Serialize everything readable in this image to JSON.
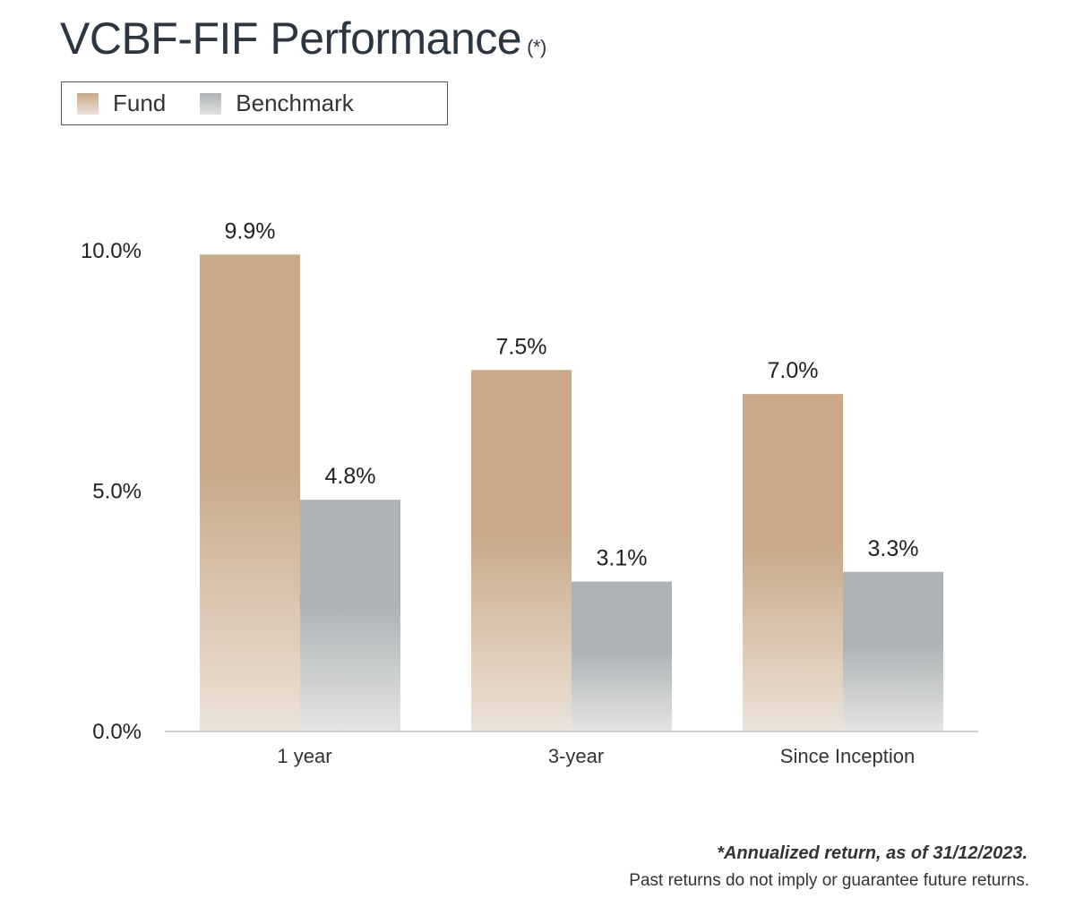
{
  "title": "VCBF-FIF Performance",
  "title_mark": "(*)",
  "legend": [
    {
      "label": "Fund"
    },
    {
      "label": "Benchmark"
    }
  ],
  "footnotes": {
    "line1": "*Annualized return, as of 31/12/2023.",
    "line2": "Past returns do not imply or guarantee future returns."
  },
  "colors": {
    "fund_top": "#c9a987",
    "fund_bottom": "#ebe2d9",
    "bench_top": "#aeb2b4",
    "bench_bottom": "#e1e2e2",
    "axis": "#d0d0d0",
    "text": "#222222"
  },
  "chart_data": {
    "type": "bar",
    "title": "VCBF-FIF Performance (*)",
    "categories": [
      "1 year",
      "3-year",
      "Since Inception"
    ],
    "series": [
      {
        "name": "Fund",
        "values": [
          9.9,
          7.5,
          7.0
        ],
        "labels": [
          "9.9%",
          "7.5%",
          "7.0%"
        ]
      },
      {
        "name": "Benchmark",
        "values": [
          4.8,
          3.1,
          3.3
        ],
        "labels": [
          "4.8%",
          "3.1%",
          "3.3%"
        ]
      }
    ],
    "yticks": [
      {
        "value": 0,
        "label": "0.0%"
      },
      {
        "value": 5,
        "label": "5.0%"
      },
      {
        "value": 10,
        "label": "10.0%"
      }
    ],
    "ylim": [
      0,
      10
    ],
    "xlabel": "",
    "ylabel": "",
    "grid": false,
    "legend_position": "top-left"
  }
}
